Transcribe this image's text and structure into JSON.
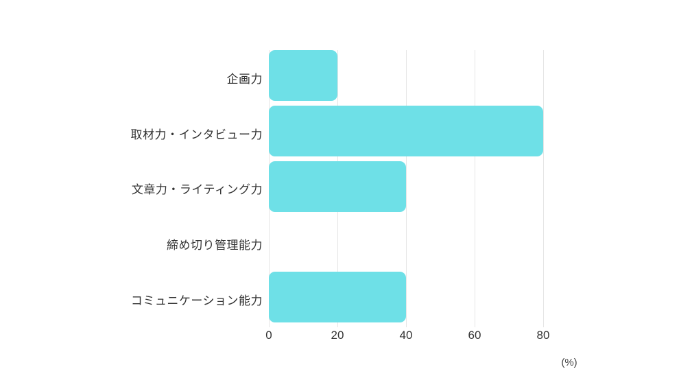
{
  "chart_data": {
    "type": "bar",
    "orientation": "horizontal",
    "title": "",
    "categories": [
      "企画力",
      "取材力・インタビュー力",
      "文章力・ライティング力",
      "締め切り管理能力",
      "コミュニケーション能力"
    ],
    "values": [
      20,
      80,
      40,
      0,
      40
    ],
    "xlabel": "(%)",
    "ylabel": "",
    "xticks": [
      "0",
      "20",
      "40",
      "60",
      "80"
    ],
    "xtick_values": [
      0,
      20,
      40,
      60,
      80
    ],
    "xlim": [
      0,
      80
    ],
    "grid": "vertical",
    "legend": "none",
    "colors": {
      "bar": "#6EE0E7",
      "gridline": "#E5E5E5",
      "text": "#333333",
      "background": "#FFFFFF"
    }
  }
}
